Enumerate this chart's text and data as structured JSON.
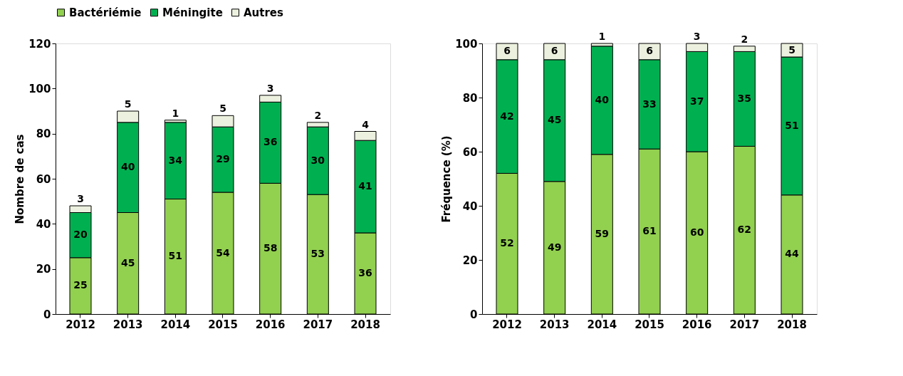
{
  "chart_data": [
    {
      "type": "bar",
      "stacked": true,
      "ylabel": "Nombre de cas",
      "categories": [
        "2012",
        "2013",
        "2014",
        "2015",
        "2016",
        "2017",
        "2018"
      ],
      "series": [
        {
          "name": "Bactériémie",
          "color": "#92d050",
          "values": [
            25,
            45,
            51,
            54,
            58,
            53,
            36
          ]
        },
        {
          "name": "Méningite",
          "color": "#00b050",
          "values": [
            20,
            40,
            34,
            29,
            36,
            30,
            41
          ]
        },
        {
          "name": "Autres",
          "color": "#ebf1de",
          "values": [
            3,
            5,
            1,
            5,
            3,
            2,
            4
          ]
        }
      ],
      "ylim": [
        0,
        120
      ],
      "yticks": [
        0,
        20,
        40,
        60,
        80,
        100,
        120
      ],
      "grid": false,
      "legend": "top",
      "data_labels": true
    },
    {
      "type": "bar",
      "stacked": true,
      "ylabel": "Fréquence (%)",
      "categories": [
        "2012",
        "2013",
        "2014",
        "2015",
        "2016",
        "2017",
        "2018"
      ],
      "series": [
        {
          "name": "Bactériémie",
          "color": "#92d050",
          "values": [
            52,
            49,
            59,
            61,
            60,
            62,
            44
          ]
        },
        {
          "name": "Méningite",
          "color": "#00b050",
          "values": [
            42,
            45,
            40,
            33,
            37,
            35,
            51
          ]
        },
        {
          "name": "Autres",
          "color": "#ebf1de",
          "values": [
            6,
            6,
            1,
            6,
            3,
            2,
            5
          ]
        }
      ],
      "ylim": [
        0,
        100
      ],
      "yticks": [
        0,
        20,
        40,
        60,
        80,
        100
      ],
      "grid": false,
      "legend": "top",
      "data_labels": true
    }
  ]
}
